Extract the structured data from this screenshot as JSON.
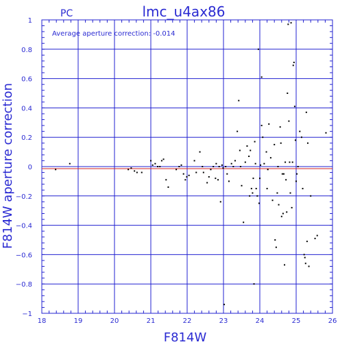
{
  "header": {
    "camera": "PC",
    "title": "lmc_u4ax86"
  },
  "annotation": "Average aperture correction: -0.014",
  "colors": {
    "axes": "#2020d0",
    "points": "#000000",
    "zero_line": "#2020d0",
    "average_line": "#d02020"
  },
  "chart_data": {
    "type": "scatter",
    "xlabel": "F814W",
    "ylabel": "F814W aperture correction",
    "xlim": [
      18,
      26
    ],
    "ylim": [
      -1,
      1
    ],
    "xticks": [
      18,
      19,
      20,
      21,
      22,
      23,
      24,
      25,
      26
    ],
    "yticks": [
      -1,
      -0.8,
      -0.6,
      -0.4,
      -0.2,
      0,
      0.2,
      0.4,
      0.6,
      0.8,
      1
    ],
    "ytick_labels": [
      "−1",
      "−0.8",
      "−0.6",
      "−0.4",
      "−0.2",
      "0",
      "0.2",
      "0.4",
      "0.6",
      "0.8",
      "1"
    ],
    "grid": true,
    "reference_lines": [
      {
        "kind": "zero",
        "y": 0
      },
      {
        "kind": "average",
        "y": -0.014
      }
    ],
    "points": [
      [
        18.38,
        -0.02
      ],
      [
        18.77,
        0.02
      ],
      [
        20.38,
        -0.02
      ],
      [
        20.46,
        -0.01
      ],
      [
        20.55,
        -0.03
      ],
      [
        20.62,
        -0.04
      ],
      [
        20.75,
        -0.04
      ],
      [
        21.0,
        0.04
      ],
      [
        21.05,
        0.01
      ],
      [
        21.12,
        0.02
      ],
      [
        21.19,
        0.0
      ],
      [
        21.25,
        0.0
      ],
      [
        21.3,
        0.04
      ],
      [
        21.35,
        0.05
      ],
      [
        21.42,
        -0.09
      ],
      [
        21.48,
        -0.14
      ],
      [
        21.7,
        -0.02
      ],
      [
        21.78,
        0.0
      ],
      [
        21.84,
        0.01
      ],
      [
        21.9,
        -0.05
      ],
      [
        21.95,
        -0.09
      ],
      [
        21.99,
        -0.07
      ],
      [
        22.05,
        -0.06
      ],
      [
        22.2,
        0.04
      ],
      [
        22.25,
        -0.04
      ],
      [
        22.35,
        0.1
      ],
      [
        22.42,
        0.0
      ],
      [
        22.45,
        -0.04
      ],
      [
        22.55,
        -0.11
      ],
      [
        22.6,
        -0.07
      ],
      [
        22.65,
        -0.02
      ],
      [
        22.72,
        0.0
      ],
      [
        22.78,
        -0.08
      ],
      [
        22.8,
        0.02
      ],
      [
        22.85,
        -0.09
      ],
      [
        22.88,
        0.0
      ],
      [
        22.92,
        -0.24
      ],
      [
        22.96,
        0.01
      ],
      [
        22.99,
        -0.01
      ],
      [
        23.02,
        -0.94
      ],
      [
        23.06,
        0.0
      ],
      [
        23.1,
        -0.05
      ],
      [
        23.15,
        -0.1
      ],
      [
        23.22,
        0.02
      ],
      [
        23.27,
        0.0
      ],
      [
        23.32,
        0.04
      ],
      [
        23.38,
        0.24
      ],
      [
        23.42,
        0.45
      ],
      [
        23.45,
        0.11
      ],
      [
        23.47,
        0.0
      ],
      [
        23.5,
        -0.13
      ],
      [
        23.55,
        -0.38
      ],
      [
        23.6,
        0.03
      ],
      [
        23.65,
        0.14
      ],
      [
        23.7,
        0.07
      ],
      [
        23.72,
        -0.2
      ],
      [
        23.74,
        0.11
      ],
      [
        23.77,
        -0.15
      ],
      [
        23.8,
        -0.18
      ],
      [
        23.82,
        -0.08
      ],
      [
        23.84,
        -0.8
      ],
      [
        23.86,
        0.17
      ],
      [
        23.88,
        0.02
      ],
      [
        23.9,
        -0.15
      ],
      [
        23.93,
        -0.2
      ],
      [
        23.96,
        0.8
      ],
      [
        23.98,
        -0.25
      ],
      [
        24.0,
        -0.08
      ],
      [
        24.02,
        0.01
      ],
      [
        24.05,
        0.61
      ],
      [
        24.05,
        0.28
      ],
      [
        24.08,
        0.2
      ],
      [
        24.12,
        0.02
      ],
      [
        24.18,
        0.1
      ],
      [
        24.2,
        -0.15
      ],
      [
        24.22,
        -0.02
      ],
      [
        24.25,
        0.29
      ],
      [
        24.3,
        0.06
      ],
      [
        24.35,
        -0.23
      ],
      [
        24.4,
        0.15
      ],
      [
        24.42,
        -0.5
      ],
      [
        24.45,
        -0.55
      ],
      [
        24.48,
        -0.18
      ],
      [
        24.5,
        0.0
      ],
      [
        24.52,
        -0.26
      ],
      [
        24.56,
        0.27
      ],
      [
        24.58,
        0.16
      ],
      [
        24.6,
        -0.34
      ],
      [
        24.62,
        -0.05
      ],
      [
        24.64,
        -0.32
      ],
      [
        24.66,
        -0.05
      ],
      [
        24.68,
        -0.67
      ],
      [
        24.7,
        0.03
      ],
      [
        24.72,
        -0.09
      ],
      [
        24.74,
        -0.31
      ],
      [
        24.76,
        0.5
      ],
      [
        24.78,
        0.97
      ],
      [
        24.8,
        0.31
      ],
      [
        24.82,
        0.03
      ],
      [
        24.84,
        -0.18
      ],
      [
        24.86,
        0.98
      ],
      [
        24.88,
        -0.28
      ],
      [
        24.9,
        0.03
      ],
      [
        24.92,
        0.69
      ],
      [
        24.94,
        0.71
      ],
      [
        24.96,
        0.41
      ],
      [
        24.98,
        0.18
      ],
      [
        25.0,
        -0.1
      ],
      [
        25.02,
        -0.05
      ],
      [
        25.05,
        0.0
      ],
      [
        25.1,
        0.24
      ],
      [
        25.15,
        0.2
      ],
      [
        25.18,
        -0.15
      ],
      [
        25.22,
        -0.6
      ],
      [
        25.24,
        -0.62
      ],
      [
        25.26,
        -0.66
      ],
      [
        25.28,
        0.37
      ],
      [
        25.3,
        -0.51
      ],
      [
        25.32,
        0.16
      ],
      [
        25.35,
        -0.68
      ],
      [
        25.4,
        -0.2
      ],
      [
        25.52,
        -0.49
      ],
      [
        25.58,
        -0.47
      ],
      [
        25.82,
        0.23
      ]
    ]
  }
}
